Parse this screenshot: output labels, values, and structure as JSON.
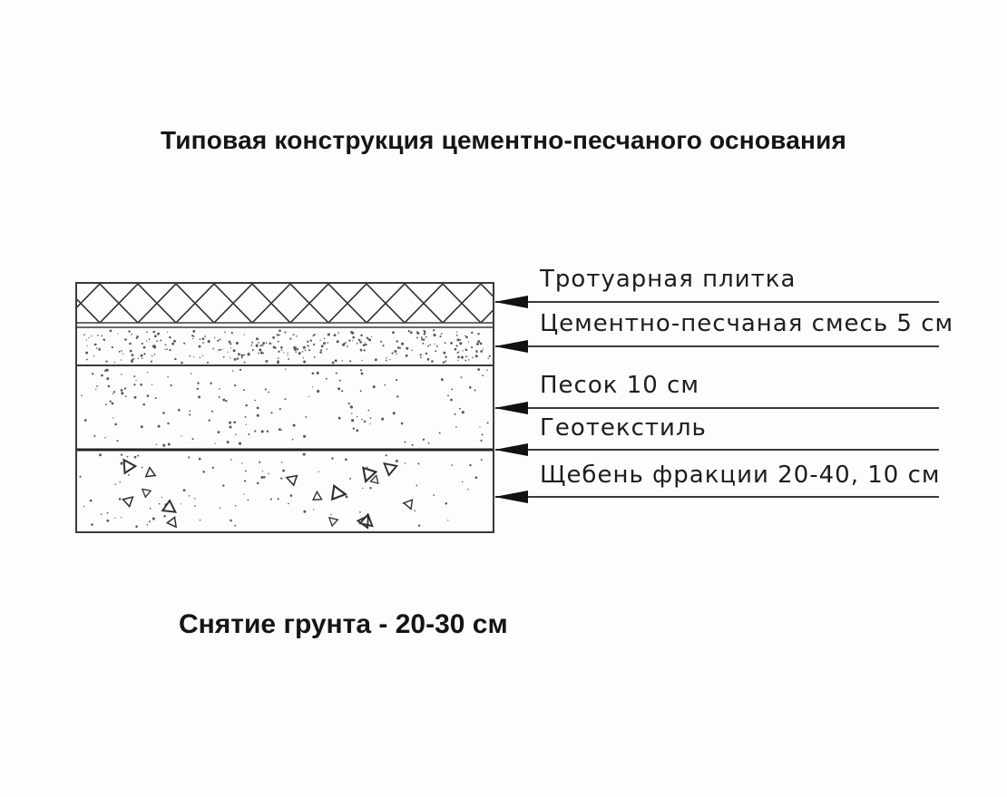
{
  "title": "Типовая конструкция цементно-песчаного основания",
  "footer_note": "Снятие грунта - 20-30 см",
  "colors": {
    "line": "#3a3a3a",
    "arrow": "#111111",
    "text": "#151515",
    "hatch": "#2f2f2f",
    "stipple": "#55595c",
    "background": "#fdfdfd"
  },
  "layers": [
    {
      "label": "Тротуарная плитка",
      "pattern": "crosshatch"
    },
    {
      "label": "Цементно-песчаная смесь 5 см",
      "pattern": "dense-stipple"
    },
    {
      "label": "Песок 10 см",
      "pattern": "sparse-stipple"
    },
    {
      "label": "Геотекстиль",
      "pattern": "thick-line"
    },
    {
      "label": "Щебень фракции 20-40, 10 см",
      "pattern": "gravel"
    }
  ]
}
